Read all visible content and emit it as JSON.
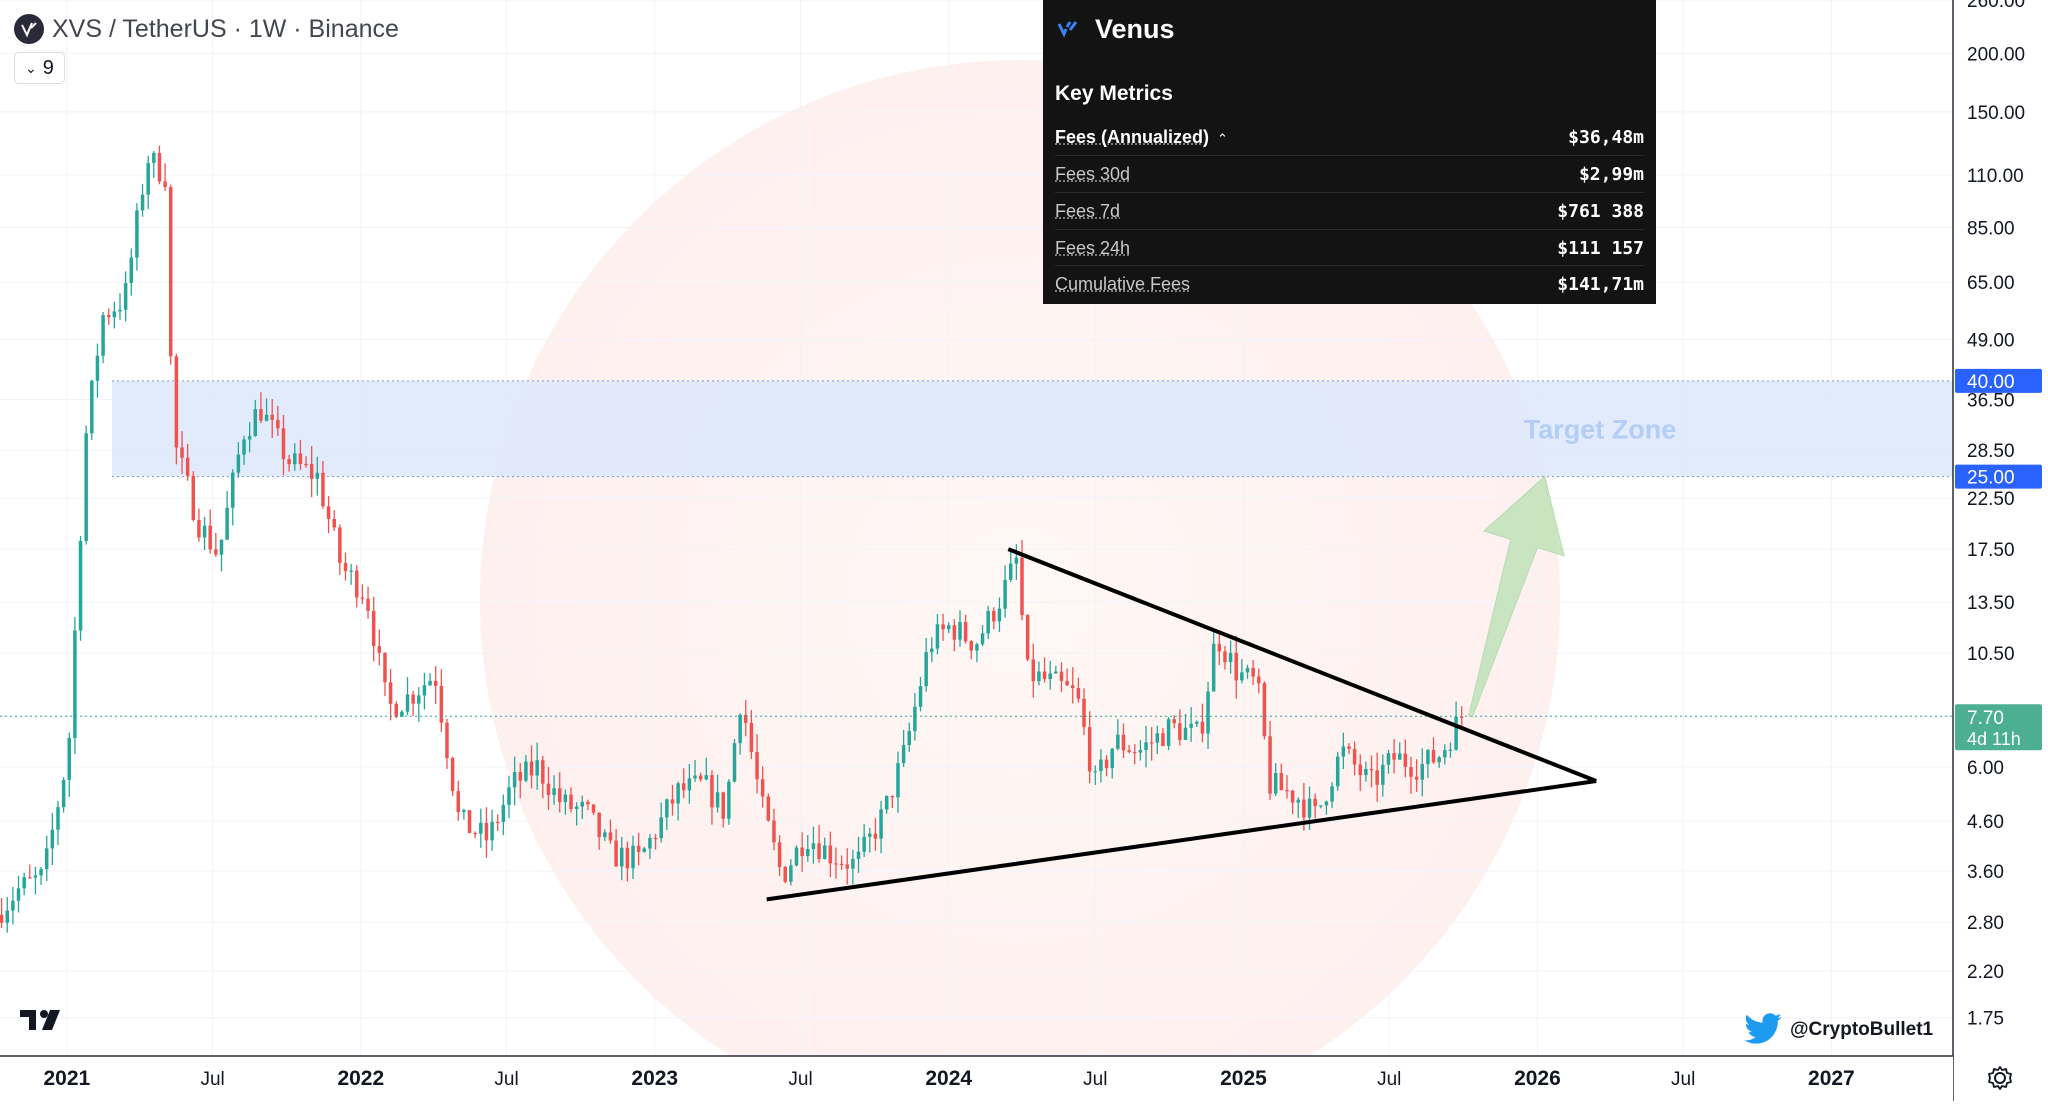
{
  "header": {
    "title": "XVS / TetherUS · 1W · Binance",
    "indicator_count": "9"
  },
  "panel": {
    "name": "Venus",
    "section": "Key Metrics",
    "metrics": [
      {
        "label": "Fees (Annualized)",
        "value": "$36,48m"
      },
      {
        "label": "Fees 30d",
        "value": "$2,99m"
      },
      {
        "label": "Fees 7d",
        "value": "$761 388"
      },
      {
        "label": "Fees 24h",
        "value": "$111 157"
      },
      {
        "label": "Cumulative Fees",
        "value": "$141,71m"
      }
    ]
  },
  "watermark": "@CryptoBullet1",
  "colors": {
    "up": "#26a69a",
    "down": "#ef5350",
    "zone": "#dce8fb",
    "zone_label": "#b3cdf6",
    "price_tag": "#2962ff",
    "last_tag": "#4caf92",
    "arrow": "#b8e0b0"
  },
  "chart_data": {
    "type": "candlestick",
    "title": "XVS / TetherUS · 1W · Binance",
    "y_scale": "log",
    "ylim": [
      1.45,
      260
    ],
    "y_ticks": [
      "260.00",
      "200.00",
      "150.00",
      "110.00",
      "85.00",
      "65.00",
      "49.00",
      "36.50",
      "28.50",
      "22.50",
      "17.50",
      "13.50",
      "10.50",
      "6.00",
      "4.60",
      "3.60",
      "2.80",
      "2.20",
      "1.75"
    ],
    "x_range": [
      "2020-10-10",
      "2027-06-01"
    ],
    "x_ticks": [
      {
        "date": "2021-01-01",
        "label": "2021",
        "major": true
      },
      {
        "date": "2021-07-01",
        "label": "Jul",
        "major": false
      },
      {
        "date": "2022-01-01",
        "label": "2022",
        "major": true
      },
      {
        "date": "2022-07-01",
        "label": "Jul",
        "major": false
      },
      {
        "date": "2023-01-01",
        "label": "2023",
        "major": true
      },
      {
        "date": "2023-07-01",
        "label": "Jul",
        "major": false
      },
      {
        "date": "2024-01-01",
        "label": "2024",
        "major": true
      },
      {
        "date": "2024-07-01",
        "label": "Jul",
        "major": false
      },
      {
        "date": "2025-01-01",
        "label": "2025",
        "major": true
      },
      {
        "date": "2025-07-01",
        "label": "Jul",
        "major": false
      },
      {
        "date": "2026-01-01",
        "label": "2026",
        "major": true
      },
      {
        "date": "2026-07-01",
        "label": "Jul",
        "major": false
      },
      {
        "date": "2027-01-01",
        "label": "2027",
        "major": true
      }
    ],
    "price_path": [
      [
        "2020-10-12",
        2.9
      ],
      [
        "2020-11-10",
        3.3
      ],
      [
        "2020-12-10",
        3.5
      ],
      [
        "2021-01-10",
        6.5
      ],
      [
        "2021-01-31",
        30
      ],
      [
        "2021-02-21",
        55
      ],
      [
        "2021-03-21",
        60
      ],
      [
        "2021-04-18",
        120
      ],
      [
        "2021-05-10",
        110
      ],
      [
        "2021-05-20",
        30
      ],
      [
        "2021-06-20",
        20
      ],
      [
        "2021-07-15",
        17
      ],
      [
        "2021-08-15",
        31
      ],
      [
        "2021-09-05",
        35
      ],
      [
        "2021-10-10",
        27
      ],
      [
        "2021-11-15",
        25
      ],
      [
        "2021-12-15",
        16
      ],
      [
        "2022-01-15",
        14
      ],
      [
        "2022-02-10",
        8
      ],
      [
        "2022-03-10",
        8.5
      ],
      [
        "2022-04-10",
        9.5
      ],
      [
        "2022-05-10",
        4.6
      ],
      [
        "2022-06-15",
        4.2
      ],
      [
        "2022-07-15",
        5.5
      ],
      [
        "2022-08-15",
        6.0
      ],
      [
        "2022-09-15",
        5.0
      ],
      [
        "2022-10-15",
        4.8
      ],
      [
        "2022-11-15",
        3.9
      ],
      [
        "2022-12-20",
        3.8
      ],
      [
        "2023-02-05",
        5.3
      ],
      [
        "2023-03-10",
        5.5
      ],
      [
        "2023-04-05",
        4.8
      ],
      [
        "2023-04-25",
        8.5
      ],
      [
        "2023-05-20",
        5.0
      ],
      [
        "2023-06-15",
        3.5
      ],
      [
        "2023-07-15",
        4.3
      ],
      [
        "2023-08-15",
        3.9
      ],
      [
        "2023-09-15",
        3.7
      ],
      [
        "2023-10-20",
        4.8
      ],
      [
        "2023-11-15",
        6.5
      ],
      [
        "2023-12-15",
        11
      ],
      [
        "2024-01-10",
        12
      ],
      [
        "2024-02-10",
        11
      ],
      [
        "2024-03-10",
        13.5
      ],
      [
        "2024-04-01",
        16.5
      ],
      [
        "2024-04-15",
        9.5
      ],
      [
        "2024-05-20",
        9
      ],
      [
        "2024-06-15",
        8.5
      ],
      [
        "2024-07-08",
        5.5
      ],
      [
        "2024-08-01",
        6.8
      ],
      [
        "2024-09-01",
        6.5
      ],
      [
        "2024-10-10",
        7.3
      ],
      [
        "2024-11-15",
        7.0
      ],
      [
        "2024-12-05",
        11.5
      ],
      [
        "2025-01-01",
        9.5
      ],
      [
        "2025-01-25",
        9.0
      ],
      [
        "2025-02-10",
        5.5
      ],
      [
        "2025-03-15",
        5.2
      ],
      [
        "2025-04-08",
        4.7
      ],
      [
        "2025-05-10",
        6.5
      ],
      [
        "2025-06-15",
        5.5
      ],
      [
        "2025-07-15",
        6.3
      ],
      [
        "2025-08-15",
        6.0
      ],
      [
        "2025-09-10",
        6.4
      ],
      [
        "2025-10-05",
        7.7
      ]
    ],
    "last_price": "7.70",
    "countdown": "4d 11h",
    "target_zone": {
      "low": 25.0,
      "high": 40.0,
      "low_label": "25.00",
      "high_label": "40.00",
      "label": "Target Zone"
    },
    "triangle": {
      "upper": [
        [
          "2024-03-15",
          17.5
        ],
        [
          "2026-03-15",
          5.6
        ]
      ],
      "lower": [
        [
          "2023-05-20",
          3.13
        ],
        [
          "2026-03-15",
          5.6
        ]
      ],
      "apex": [
        "2026-03-15",
        5.6
      ]
    },
    "projection_arrow": {
      "from": [
        "2025-10-10",
        7.7
      ],
      "to": [
        "2026-01-10",
        25.0
      ]
    }
  }
}
